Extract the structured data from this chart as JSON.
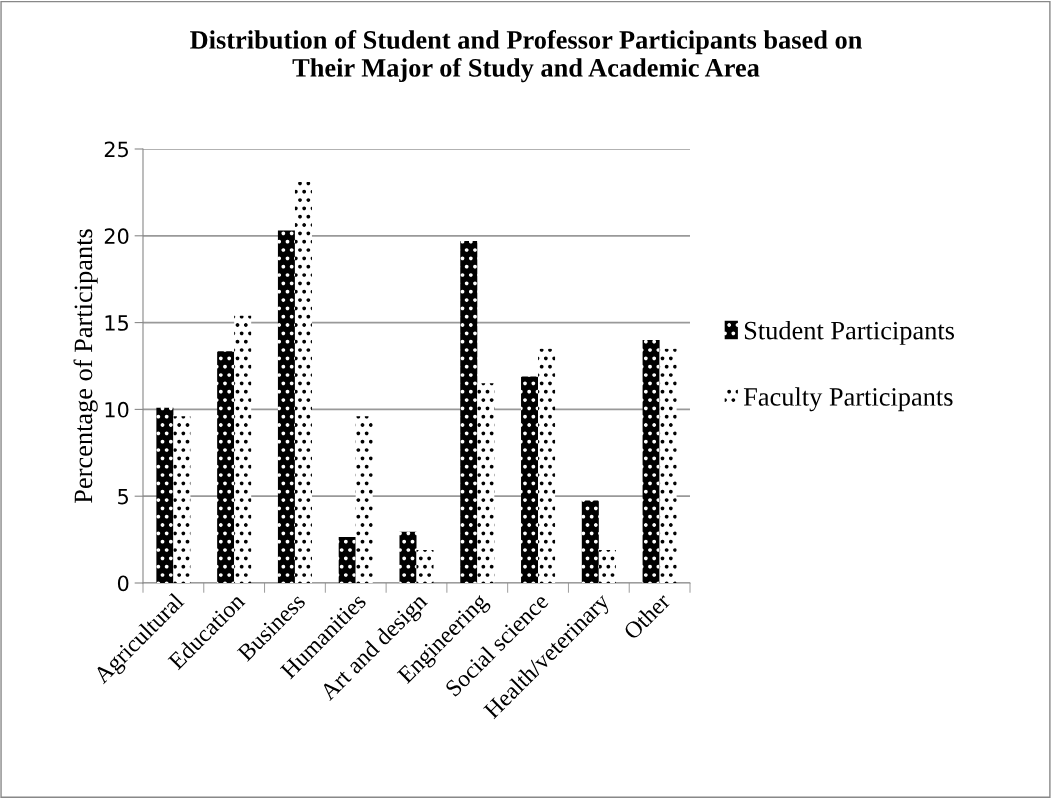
{
  "chart_data": {
    "type": "bar",
    "title": "Distribution of Student and Professor Participants based on\nTheir Major of Study and Academic Area",
    "ylabel": "Percentage of Participants",
    "categories": [
      "Agricultural",
      "Education",
      "Business",
      "Humanities",
      "Art and design",
      "Engineering",
      "Social science",
      "Health/veterinary",
      "Other"
    ],
    "series": [
      {
        "name": "Student Participants",
        "color": "#000000",
        "values": [
          10.1,
          13.35,
          20.3,
          2.65,
          2.95,
          19.7,
          11.9,
          4.75,
          14.0
        ]
      },
      {
        "name": "Faculty Participants",
        "color": "#ffffff",
        "values": [
          9.6,
          15.4,
          23.1,
          9.6,
          1.9,
          11.5,
          13.5,
          1.9,
          13.5
        ]
      }
    ],
    "ylim": [
      0,
      25
    ],
    "yticks": [
      0,
      5,
      10,
      15,
      20,
      25
    ],
    "grid": "y",
    "legend": "right"
  }
}
